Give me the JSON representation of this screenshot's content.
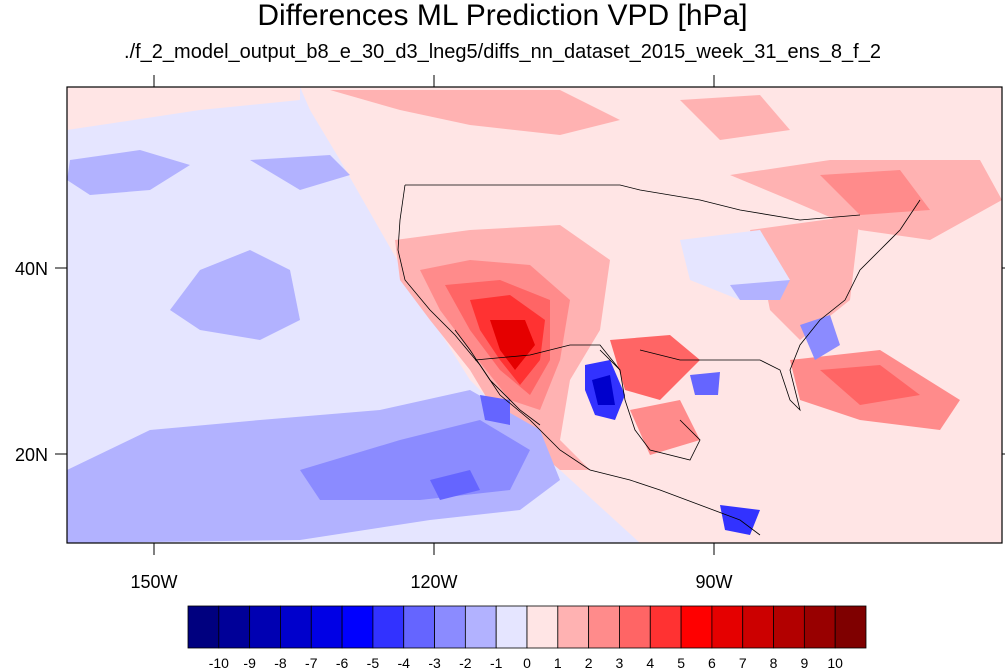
{
  "title": "Differences ML Prediction VPD [hPa]",
  "subtitle": "./f_2_model_output_b8_e_30_d3_lneg5/diffs_nn_dataset_2015_week_31_ens_8_f_2",
  "map": {
    "lon_range": [
      -160,
      -62
    ],
    "lat_range": [
      10,
      59
    ],
    "x_ticks": [
      {
        "lon": -150,
        "label": "150W"
      },
      {
        "lon": -120,
        "label": "120W"
      },
      {
        "lon": -90,
        "label": "90W"
      }
    ],
    "y_ticks": [
      {
        "lat": 40,
        "label": "40N"
      },
      {
        "lat": 20,
        "label": "20N"
      }
    ]
  },
  "colorbar": {
    "levels": [
      "-10",
      "-9",
      "-8",
      "-7",
      "-6",
      "-5",
      "-4",
      "-3",
      "-2",
      "-1",
      "0",
      "1",
      "2",
      "3",
      "4",
      "5",
      "6",
      "7",
      "8",
      "9",
      "10"
    ],
    "colors": [
      "#00007f",
      "#000098",
      "#0000b2",
      "#0000cc",
      "#0000e5",
      "#0000ff",
      "#3232ff",
      "#6565ff",
      "#8b8bff",
      "#b2b2ff",
      "#e5e5ff",
      "#ffe5e5",
      "#ffb2b2",
      "#ff8b8b",
      "#ff6565",
      "#ff3232",
      "#ff0000",
      "#e50000",
      "#cc0000",
      "#b20000",
      "#980000",
      "#7f0000"
    ]
  }
}
